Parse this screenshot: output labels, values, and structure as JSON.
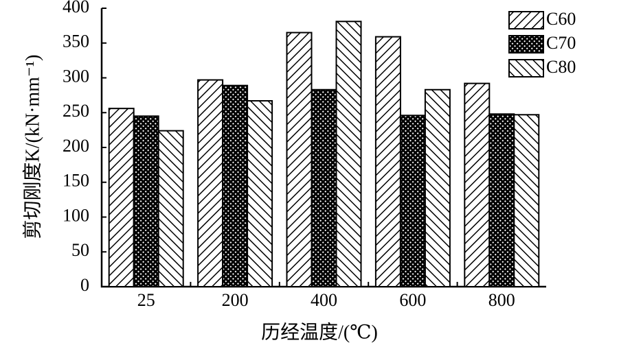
{
  "chart_data": {
    "type": "bar",
    "x_label": "历经温度/(℃)",
    "y_label": "剪切刚度K/(kN·mm⁻¹)",
    "categories": [
      "25",
      "200",
      "400",
      "600",
      "800"
    ],
    "series": [
      {
        "name": "C60",
        "color": "#000000",
        "hatch": "forward",
        "values": [
          256,
          297,
          365,
          359,
          292
        ]
      },
      {
        "name": "C70",
        "color": "#000000",
        "hatch": "cross",
        "values": [
          245,
          289,
          283,
          246,
          248
        ]
      },
      {
        "name": "C80",
        "color": "#000000",
        "hatch": "backward",
        "values": [
          224,
          267,
          381,
          283,
          247
        ]
      }
    ],
    "ylim": [
      0,
      400
    ],
    "yticks": [
      0,
      50,
      100,
      150,
      200,
      250,
      300,
      350,
      400
    ],
    "legend": "top-right",
    "grid": false
  }
}
